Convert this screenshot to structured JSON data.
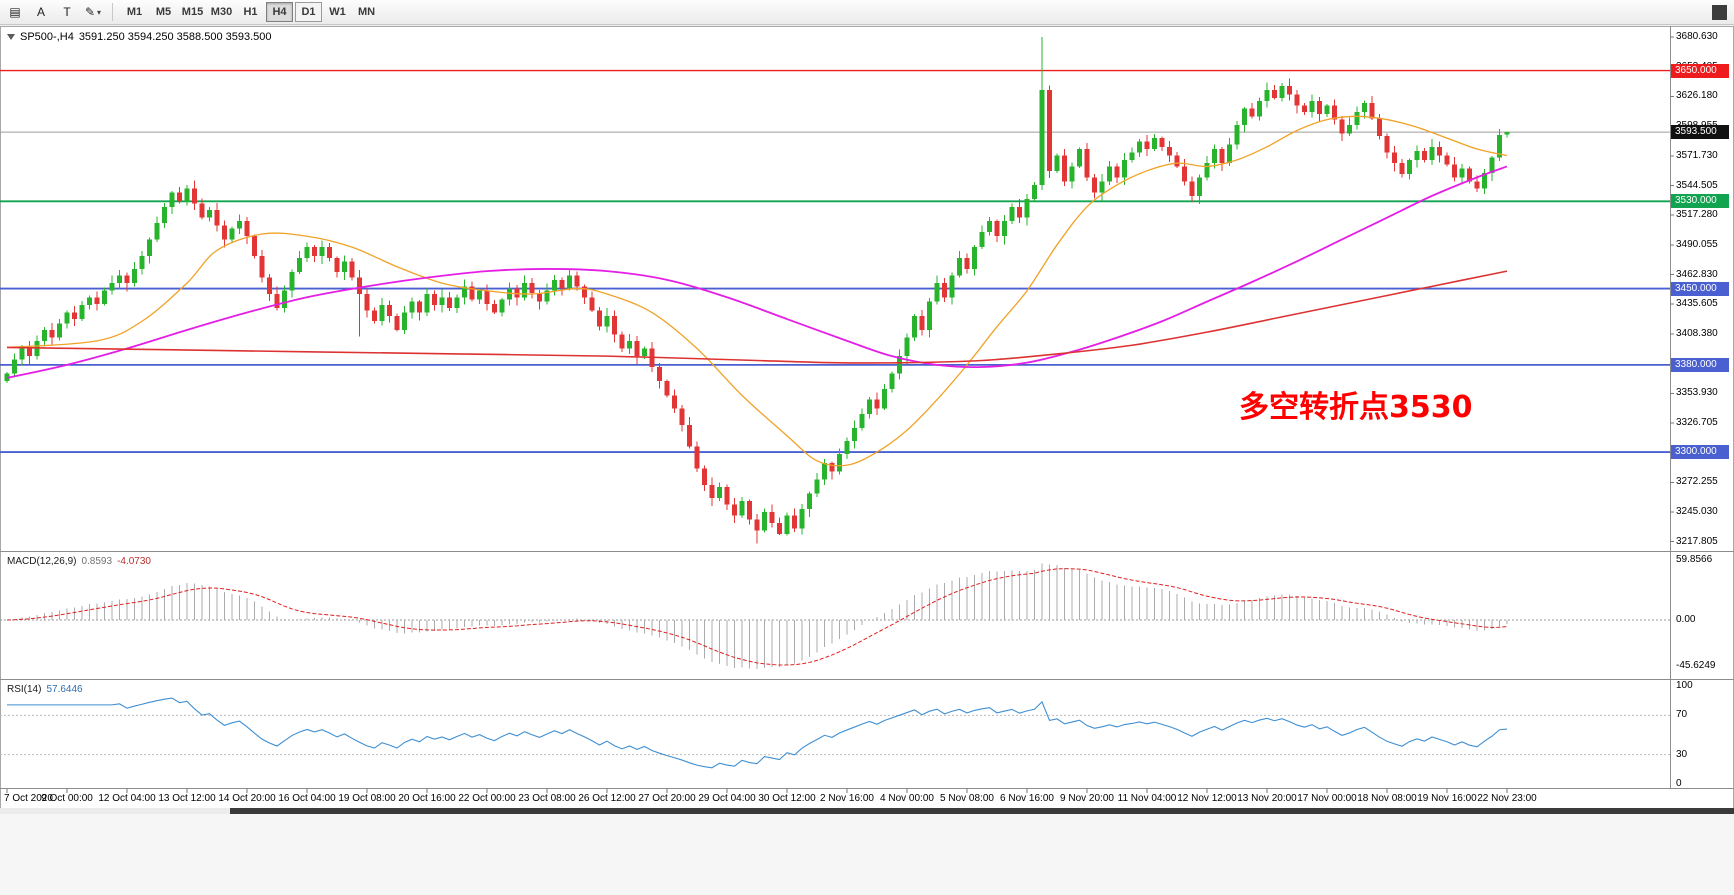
{
  "toolbar": {
    "tools": [
      {
        "name": "chart-list",
        "glyph": "▤"
      },
      {
        "name": "text-annotation",
        "glyph": "A"
      },
      {
        "name": "text-label",
        "glyph": "T"
      },
      {
        "name": "drawing-tools",
        "glyph": "✎",
        "dropdown": true
      }
    ],
    "timeframes": [
      "M1",
      "M5",
      "M15",
      "M30",
      "H1",
      "H4",
      "D1",
      "W1",
      "MN"
    ],
    "selected_timeframe": "H4",
    "outlined_timeframe": "D1"
  },
  "chart": {
    "symbol_label": "SP500-,H4",
    "ohlc_label": "3591.250 3594.250 3588.500 3593.500",
    "current_price": {
      "value": 3593.5,
      "label": "3593.500",
      "line_color": "#9c9c9c",
      "tag_color": "#111111"
    },
    "price_axis": [
      {
        "value": 3680.63,
        "label": "3680.630"
      },
      {
        "value": 3653.405,
        "label": "3653.405"
      },
      {
        "value": 3626.18,
        "label": "3626.180"
      },
      {
        "value": 3598.955,
        "label": "3598.955"
      },
      {
        "value": 3571.73,
        "label": "3571.730"
      },
      {
        "value": 3544.505,
        "label": "3544.505"
      },
      {
        "value": 3517.28,
        "label": "3517.280"
      },
      {
        "value": 3490.055,
        "label": "3490.055"
      },
      {
        "value": 3462.83,
        "label": "3462.830"
      },
      {
        "value": 3435.605,
        "label": "3435.605"
      },
      {
        "value": 3408.38,
        "label": "3408.380"
      },
      {
        "value": 3381.155,
        "label": "3381.155"
      },
      {
        "value": 3353.93,
        "label": "3353.930"
      },
      {
        "value": 3326.705,
        "label": "3326.705"
      },
      {
        "value": 3299.48,
        "label": "3299.480"
      },
      {
        "value": 3272.255,
        "label": "3272.255"
      },
      {
        "value": 3245.03,
        "label": "3245.030"
      },
      {
        "value": 3217.805,
        "label": "3217.805"
      }
    ],
    "hlines": [
      {
        "value": 3650,
        "label": "3650.000",
        "color": "#ee1c1c",
        "width": 1.4
      },
      {
        "value": 3530,
        "label": "3530.000",
        "color": "#12a351",
        "width": 1.8
      },
      {
        "value": 3450,
        "label": "3450.000",
        "color": "#4a5fd0",
        "width": 1.8
      },
      {
        "value": 3380,
        "label": "3380.000",
        "color": "#4a5fd0",
        "width": 1.8
      },
      {
        "value": 3300,
        "label": "3300.000",
        "color": "#4a5fd0",
        "width": 1.8
      }
    ],
    "annotation": {
      "text": "多空转折点3530",
      "color": "#ff0000"
    }
  },
  "macd": {
    "name": "MACD(12,26,9)",
    "value1": "0.8593",
    "value2": "-4.0730",
    "axis": [
      {
        "value": 59.8566,
        "label": "59.8566"
      },
      {
        "value": 0,
        "label": "0.00"
      },
      {
        "value": -45.6249,
        "label": "-45.6249"
      }
    ],
    "ylim": [
      -54,
      66
    ]
  },
  "rsi": {
    "name": "RSI(14)",
    "value": "57.6446",
    "axis": [
      {
        "value": 100,
        "label": "100"
      },
      {
        "value": 70,
        "label": "70"
      },
      {
        "value": 30,
        "label": "30"
      },
      {
        "value": 0,
        "label": "0"
      }
    ],
    "levels": [
      70,
      30
    ]
  },
  "time_axis": [
    "7 Oct 2020",
    "9 Oct 00:00",
    "12 Oct 04:00",
    "13 Oct 12:00",
    "14 Oct 20:00",
    "16 Oct 04:00",
    "19 Oct 08:00",
    "20 Oct 16:00",
    "22 Oct 00:00",
    "23 Oct 08:00",
    "26 Oct 12:00",
    "27 Oct 20:00",
    "29 Oct 04:00",
    "30 Oct 12:00",
    "2 Nov 16:00",
    "4 Nov 00:00",
    "5 Nov 08:00",
    "6 Nov 16:00",
    "9 Nov 20:00",
    "11 Nov 04:00",
    "12 Nov 12:00",
    "13 Nov 20:00",
    "17 Nov 00:00",
    "18 Nov 08:00",
    "19 Nov 16:00",
    "22 Nov 23:00"
  ],
  "chart_data": {
    "type": "candlestick",
    "symbol": "SP500-",
    "period": "H4",
    "ylim": [
      3212,
      3689
    ],
    "first_open": 3365,
    "closes": [
      3372,
      3385,
      3395,
      3388,
      3402,
      3412,
      3405,
      3418,
      3428,
      3422,
      3435,
      3442,
      3436,
      3448,
      3455,
      3462,
      3455,
      3468,
      3480,
      3495,
      3510,
      3525,
      3538,
      3530,
      3542,
      3528,
      3515,
      3522,
      3508,
      3495,
      3505,
      3512,
      3498,
      3480,
      3460,
      3445,
      3432,
      3448,
      3465,
      3478,
      3488,
      3480,
      3488,
      3478,
      3465,
      3475,
      3460,
      3445,
      3430,
      3420,
      3435,
      3425,
      3412,
      3428,
      3438,
      3428,
      3445,
      3435,
      3442,
      3432,
      3442,
      3452,
      3440,
      3448,
      3436,
      3428,
      3440,
      3450,
      3442,
      3455,
      3446,
      3438,
      3448,
      3458,
      3450,
      3462,
      3452,
      3442,
      3430,
      3415,
      3425,
      3408,
      3395,
      3402,
      3388,
      3395,
      3378,
      3365,
      3352,
      3340,
      3325,
      3305,
      3285,
      3270,
      3258,
      3268,
      3252,
      3242,
      3255,
      3238,
      3228,
      3245,
      3235,
      3225,
      3242,
      3230,
      3248,
      3262,
      3275,
      3290,
      3282,
      3298,
      3310,
      3322,
      3335,
      3348,
      3340,
      3358,
      3372,
      3388,
      3405,
      3425,
      3412,
      3438,
      3455,
      3442,
      3462,
      3478,
      3468,
      3488,
      3502,
      3512,
      3498,
      3512,
      3525,
      3515,
      3532,
      3545,
      3632,
      3558,
      3572,
      3548,
      3562,
      3578,
      3552,
      3538,
      3548,
      3562,
      3552,
      3568,
      3575,
      3585,
      3578,
      3588,
      3580,
      3572,
      3562,
      3548,
      3535,
      3552,
      3565,
      3578,
      3565,
      3582,
      3600,
      3615,
      3608,
      3622,
      3632,
      3625,
      3636,
      3628,
      3618,
      3612,
      3622,
      3610,
      3618,
      3605,
      3592,
      3600,
      3612,
      3620,
      3606,
      3590,
      3575,
      3565,
      3555,
      3568,
      3576,
      3568,
      3580,
      3572,
      3564,
      3552,
      3560,
      3548,
      3542,
      3556,
      3570,
      3591,
      3593.5
    ],
    "wick_overrides": [
      {
        "i": 47,
        "low": 3406
      },
      {
        "i": 100,
        "low": 3216.155
      },
      {
        "i": 103,
        "low": 3224
      },
      {
        "i": 138,
        "high": 3680.63
      }
    ],
    "last_candle": {
      "open": 3591.25,
      "high": 3594.25,
      "low": 3588.5,
      "close": 3593.5
    },
    "moving_averages": [
      {
        "name": "ma-fast",
        "color": "#f0a227",
        "width": 1.3,
        "anchors": [
          [
            0,
            3396
          ],
          [
            12,
            3402
          ],
          [
            18,
            3420
          ],
          [
            24,
            3455
          ],
          [
            28,
            3485
          ],
          [
            34,
            3500
          ],
          [
            40,
            3498
          ],
          [
            46,
            3488
          ],
          [
            52,
            3470
          ],
          [
            58,
            3455
          ],
          [
            64,
            3448
          ],
          [
            70,
            3445
          ],
          [
            76,
            3450
          ],
          [
            80,
            3445
          ],
          [
            86,
            3428
          ],
          [
            92,
            3395
          ],
          [
            98,
            3352
          ],
          [
            104,
            3315
          ],
          [
            108,
            3292
          ],
          [
            112,
            3288
          ],
          [
            116,
            3300
          ],
          [
            120,
            3320
          ],
          [
            124,
            3348
          ],
          [
            128,
            3380
          ],
          [
            132,
            3415
          ],
          [
            136,
            3448
          ],
          [
            140,
            3490
          ],
          [
            144,
            3525
          ],
          [
            148,
            3545
          ],
          [
            152,
            3558
          ],
          [
            156,
            3565
          ],
          [
            160,
            3562
          ],
          [
            164,
            3568
          ],
          [
            168,
            3580
          ],
          [
            172,
            3595
          ],
          [
            176,
            3605
          ],
          [
            180,
            3608
          ],
          [
            184,
            3605
          ],
          [
            188,
            3598
          ],
          [
            192,
            3588
          ],
          [
            196,
            3578
          ],
          [
            200,
            3572
          ]
        ]
      },
      {
        "name": "ma-mid",
        "color": "#e51ee5",
        "width": 1.8,
        "anchors": [
          [
            0,
            3368
          ],
          [
            8,
            3380
          ],
          [
            16,
            3395
          ],
          [
            24,
            3412
          ],
          [
            32,
            3428
          ],
          [
            40,
            3442
          ],
          [
            48,
            3452
          ],
          [
            56,
            3460
          ],
          [
            64,
            3466
          ],
          [
            72,
            3468
          ],
          [
            80,
            3466
          ],
          [
            88,
            3458
          ],
          [
            96,
            3442
          ],
          [
            104,
            3422
          ],
          [
            112,
            3402
          ],
          [
            118,
            3388
          ],
          [
            124,
            3380
          ],
          [
            130,
            3378
          ],
          [
            136,
            3382
          ],
          [
            142,
            3392
          ],
          [
            148,
            3405
          ],
          [
            154,
            3420
          ],
          [
            160,
            3438
          ],
          [
            166,
            3456
          ],
          [
            172,
            3475
          ],
          [
            178,
            3495
          ],
          [
            184,
            3515
          ],
          [
            190,
            3535
          ],
          [
            196,
            3552
          ],
          [
            200,
            3562
          ]
        ]
      },
      {
        "name": "ma-slow",
        "color": "#dd3232",
        "width": 1.6,
        "anchors": [
          [
            0,
            3396
          ],
          [
            20,
            3394
          ],
          [
            40,
            3392
          ],
          [
            60,
            3390
          ],
          [
            80,
            3388
          ],
          [
            100,
            3384
          ],
          [
            110,
            3382
          ],
          [
            120,
            3382
          ],
          [
            130,
            3384
          ],
          [
            140,
            3390
          ],
          [
            150,
            3398
          ],
          [
            160,
            3410
          ],
          [
            170,
            3424
          ],
          [
            180,
            3438
          ],
          [
            190,
            3452
          ],
          [
            200,
            3466
          ]
        ]
      }
    ],
    "colors": {
      "up": "#27b42c",
      "down": "#e23636",
      "macd_hist": "#ababab",
      "macd_signal": "#e02020",
      "rsi": "#3f8fd2"
    }
  }
}
